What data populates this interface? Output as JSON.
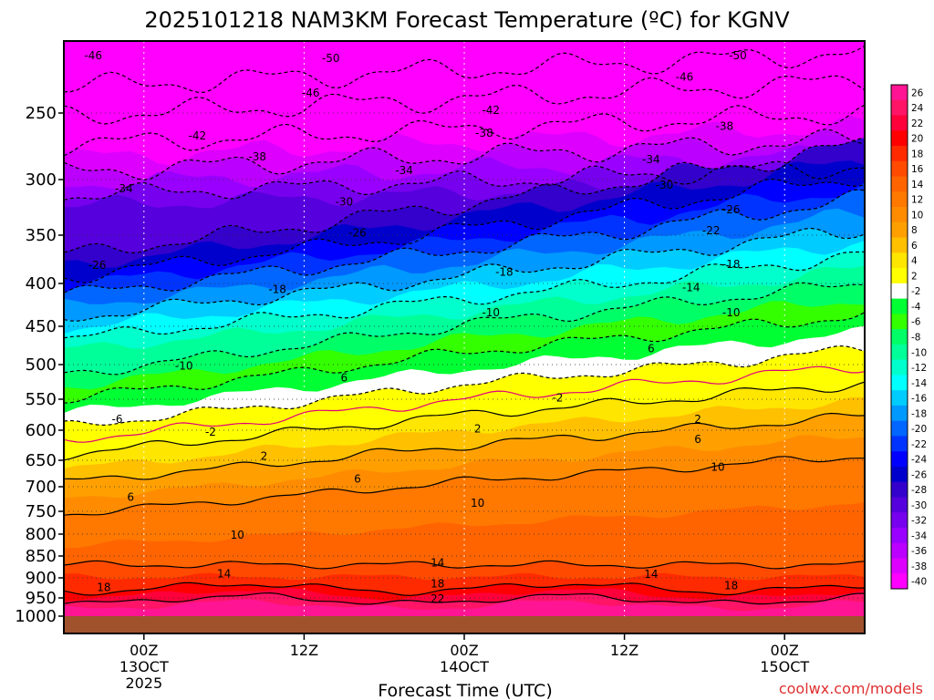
{
  "chart_data": {
    "type": "heatmap",
    "title": "2025101218 NAM3KM Forecast Temperature (ºC) for KGNV",
    "xlabel": "Forecast Time (UTC)",
    "credit": "coolwx.com/models",
    "x_ticks": [
      {
        "hour": 6,
        "l1": "00Z",
        "l2": "13OCT",
        "l3": "2025"
      },
      {
        "hour": 18,
        "l1": "12Z",
        "l2": "",
        "l3": ""
      },
      {
        "hour": 30,
        "l1": "00Z",
        "l2": "14OCT",
        "l3": ""
      },
      {
        "hour": 42,
        "l1": "12Z",
        "l2": "",
        "l3": ""
      },
      {
        "hour": 54,
        "l1": "00Z",
        "l2": "15OCT",
        "l3": ""
      }
    ],
    "x_range_hours": [
      0,
      60
    ],
    "y_pressure_levels": [
      250,
      300,
      350,
      400,
      450,
      500,
      550,
      600,
      650,
      700,
      750,
      800,
      850,
      900,
      950,
      1000
    ],
    "y_range_hpa": [
      200,
      1020
    ],
    "colorbar_labels": [
      26,
      24,
      22,
      20,
      18,
      16,
      14,
      12,
      10,
      8,
      6,
      4,
      2,
      -2,
      -4,
      -6,
      -8,
      -10,
      -12,
      -14,
      -16,
      -18,
      -20,
      -22,
      -24,
      -26,
      -28,
      -30,
      -32,
      -34,
      -36,
      -38,
      -40
    ],
    "colorbar_colors": [
      "#ff1493",
      "#ff1466",
      "#ff003a",
      "#ff0000",
      "#ff2a00",
      "#ff4a00",
      "#ff6400",
      "#ff7800",
      "#ff8c00",
      "#ffa000",
      "#ffc000",
      "#ffe600",
      "#ffff00",
      "#ffffff",
      "#00ff33",
      "#33ff00",
      "#00ff66",
      "#00ff99",
      "#00ffcc",
      "#00ffff",
      "#00ccff",
      "#0099ff",
      "#0066ff",
      "#0033ff",
      "#0000ff",
      "#0000cc",
      "#3300cc",
      "#5500dd",
      "#7700ee",
      "#9900ff",
      "#bb00ff",
      "#dd00ff",
      "#ff00ff"
    ],
    "isotherm_labels": [
      {
        "v": "-50",
        "hour": 20.0,
        "p": 212
      },
      {
        "v": "-50",
        "hour": 50.5,
        "p": 210
      },
      {
        "v": "-46",
        "hour": 2.2,
        "p": 210
      },
      {
        "v": "-46",
        "hour": 18.5,
        "p": 236
      },
      {
        "v": "-46",
        "hour": 46.5,
        "p": 225
      },
      {
        "v": "-42",
        "hour": 10.0,
        "p": 267
      },
      {
        "v": "-42",
        "hour": 32.0,
        "p": 248
      },
      {
        "v": "-38",
        "hour": 14.5,
        "p": 283
      },
      {
        "v": "-38",
        "hour": 31.5,
        "p": 265
      },
      {
        "v": "-38",
        "hour": 49.5,
        "p": 260
      },
      {
        "v": "-34",
        "hour": 4.5,
        "p": 308
      },
      {
        "v": "-34",
        "hour": 25.5,
        "p": 293
      },
      {
        "v": "-34",
        "hour": 44.0,
        "p": 285
      },
      {
        "v": "-30",
        "hour": 21.0,
        "p": 320
      },
      {
        "v": "-30",
        "hour": 45.0,
        "p": 305
      },
      {
        "v": "-26",
        "hour": 2.5,
        "p": 381
      },
      {
        "v": "-26",
        "hour": 22.0,
        "p": 348
      },
      {
        "v": "-26",
        "hour": 50.0,
        "p": 327
      },
      {
        "v": "-22",
        "hour": 48.5,
        "p": 346
      },
      {
        "v": "-18",
        "hour": 16.0,
        "p": 407
      },
      {
        "v": "-18",
        "hour": 33.0,
        "p": 388
      },
      {
        "v": "-18",
        "hour": 50.0,
        "p": 380
      },
      {
        "v": "-14",
        "hour": 47.0,
        "p": 405
      },
      {
        "v": "-10",
        "hour": 9.0,
        "p": 502
      },
      {
        "v": "-10",
        "hour": 32.0,
        "p": 434
      },
      {
        "v": "-10",
        "hour": 50.0,
        "p": 434
      },
      {
        "v": "-6",
        "hour": 4.0,
        "p": 582
      },
      {
        "v": "6",
        "hour": 21.0,
        "p": 519
      },
      {
        "v": "6",
        "hour": 44.0,
        "p": 479
      },
      {
        "v": "-2",
        "hour": 11.0,
        "p": 603
      },
      {
        "v": "-2",
        "hour": 37.0,
        "p": 548
      },
      {
        "v": "2",
        "hour": 15.0,
        "p": 643
      },
      {
        "v": "2",
        "hour": 31.0,
        "p": 598
      },
      {
        "v": "2",
        "hour": 47.5,
        "p": 582
      },
      {
        "v": "6",
        "hour": 5.0,
        "p": 721
      },
      {
        "v": "6",
        "hour": 22.0,
        "p": 685
      },
      {
        "v": "6",
        "hour": 47.5,
        "p": 615
      },
      {
        "v": "10",
        "hour": 13.0,
        "p": 802
      },
      {
        "v": "10",
        "hour": 31.0,
        "p": 733
      },
      {
        "v": "10",
        "hour": 49.0,
        "p": 663
      },
      {
        "v": "14",
        "hour": 12.0,
        "p": 891
      },
      {
        "v": "14",
        "hour": 28.0,
        "p": 866
      },
      {
        "v": "14",
        "hour": 44.0,
        "p": 892
      },
      {
        "v": "18",
        "hour": 3.0,
        "p": 924
      },
      {
        "v": "18",
        "hour": 28.0,
        "p": 915
      },
      {
        "v": "18",
        "hour": 50.0,
        "p": 919
      },
      {
        "v": "22",
        "hour": 28.0,
        "p": 952
      }
    ]
  }
}
